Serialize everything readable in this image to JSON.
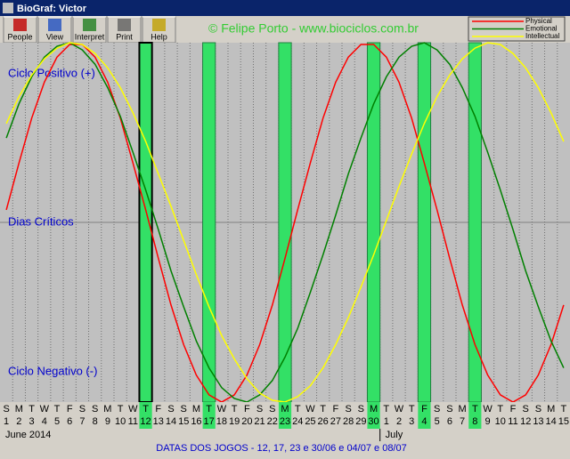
{
  "window": {
    "title": "BioGraf: Victor"
  },
  "toolbar": [
    "People",
    "View",
    "Interpret",
    "Print",
    "Help"
  ],
  "watermark": "© Felipe Porto - www.biociclos.com.br",
  "chart_data": {
    "type": "line",
    "level_labels": [
      "Ciclo Positivo (+)",
      "Dias Críticos",
      "Ciclo Negativo (-)"
    ],
    "weekdays": [
      "S",
      "M",
      "T",
      "W",
      "T",
      "F",
      "S",
      "S",
      "M",
      "T",
      "W",
      "T",
      "F",
      "S",
      "S",
      "M",
      "T",
      "W",
      "T",
      "F",
      "S",
      "S",
      "M",
      "T",
      "W",
      "T",
      "F",
      "S",
      "S",
      "M",
      "T",
      "W",
      "T",
      "F",
      "S",
      "S",
      "M",
      "T",
      "W",
      "T",
      "F",
      "S",
      "S",
      "M",
      "T"
    ],
    "dates": [
      "1",
      "2",
      "3",
      "4",
      "5",
      "6",
      "7",
      "8",
      "9",
      "10",
      "11",
      "12",
      "13",
      "14",
      "15",
      "16",
      "17",
      "18",
      "19",
      "20",
      "21",
      "22",
      "23",
      "24",
      "25",
      "26",
      "27",
      "28",
      "29",
      "30",
      "1",
      "2",
      "3",
      "4",
      "5",
      "6",
      "7",
      "8",
      "9",
      "10",
      "11",
      "12",
      "13",
      "14",
      "15"
    ],
    "months": [
      {
        "label": "June 2014",
        "start": 0
      },
      {
        "label": "July",
        "start": 30
      }
    ],
    "highlighted": [
      11,
      16,
      22,
      29,
      33,
      37
    ],
    "selected": 11,
    "ylim": [
      -100,
      100
    ],
    "series": [
      {
        "name": "Physical",
        "color": "#ff0000",
        "values": [
          7,
          33,
          58,
          78,
          92,
          99,
          99,
          92,
          78,
          58,
          33,
          7,
          -20,
          -46,
          -68,
          -85,
          -96,
          -100,
          -96,
          -85,
          -68,
          -46,
          -20,
          7,
          33,
          58,
          78,
          92,
          99,
          99,
          92,
          78,
          58,
          33,
          7,
          -20,
          -46,
          -68,
          -85,
          -96,
          -100,
          -96,
          -85,
          -68,
          -46
        ]
      },
      {
        "name": "Emotional",
        "color": "#008000",
        "values": [
          47,
          66,
          81,
          92,
          98,
          100,
          96,
          88,
          75,
          59,
          39,
          18,
          -4,
          -27,
          -47,
          -66,
          -81,
          -92,
          -98,
          -100,
          -96,
          -88,
          -75,
          -59,
          -39,
          -18,
          4,
          27,
          47,
          66,
          81,
          92,
          98,
          100,
          96,
          88,
          75,
          59,
          39,
          18,
          -4,
          -27,
          -47,
          -66,
          -81
        ]
      },
      {
        "name": "Intellectual",
        "color": "#ffff00",
        "values": [
          55,
          70,
          82,
          91,
          97,
          100,
          99,
          94,
          86,
          75,
          61,
          45,
          27,
          9,
          -10,
          -29,
          -47,
          -63,
          -76,
          -87,
          -95,
          -99,
          -100,
          -97,
          -91,
          -81,
          -68,
          -53,
          -36,
          -18,
          1,
          20,
          38,
          55,
          70,
          82,
          91,
          97,
          100,
          99,
          94,
          86,
          75,
          61,
          45
        ]
      }
    ]
  },
  "status": "DATAS DOS JOGOS - 12, 17, 23 e 30/06 e 04/07 e 08/07"
}
